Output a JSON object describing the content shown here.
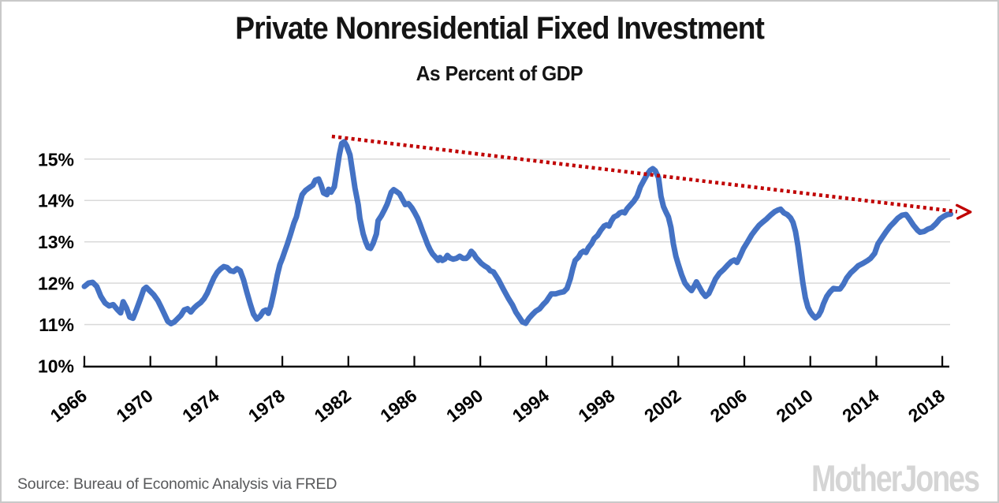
{
  "page": {
    "source": "Source: Bureau of Economic Analysis via FRED",
    "logo": "MotherJones"
  },
  "chart_data": {
    "type": "line",
    "title": "Private Nonresidential Fixed Investment",
    "subtitle": "As Percent of GDP",
    "xlabel": "",
    "ylabel": "Percent of GDP",
    "xlim": [
      1966,
      2018.6
    ],
    "ylim": [
      10,
      15.6
    ],
    "grid": true,
    "x_ticks": [
      1966,
      1970,
      1974,
      1978,
      1982,
      1986,
      1990,
      1994,
      1998,
      2002,
      2006,
      2010,
      2014,
      2018
    ],
    "y_ticks": [
      {
        "value": 10,
        "label": "10%"
      },
      {
        "value": 11,
        "label": "11%"
      },
      {
        "value": 12,
        "label": "12%"
      },
      {
        "value": 13,
        "label": "13%"
      },
      {
        "value": 14,
        "label": "14%"
      },
      {
        "value": 15,
        "label": "15%"
      }
    ],
    "y_gridlines": [
      11,
      12,
      13,
      14,
      15
    ],
    "colors": {
      "line": "#4472C4",
      "trend": "#C00000",
      "grid": "#D9D9D9",
      "axis": "#000000",
      "source_text": "#58595B",
      "logo": "#D5D5D5"
    },
    "series": [
      {
        "name": "Private nonresidential fixed investment, percent of GDP",
        "color": "#4472C4",
        "points": [
          [
            1966.0,
            11.92
          ],
          [
            1966.25,
            12.0
          ],
          [
            1966.5,
            12.02
          ],
          [
            1966.75,
            11.92
          ],
          [
            1967.0,
            11.68
          ],
          [
            1967.25,
            11.52
          ],
          [
            1967.5,
            11.45
          ],
          [
            1967.75,
            11.48
          ],
          [
            1968.0,
            11.36
          ],
          [
            1968.2,
            11.28
          ],
          [
            1968.35,
            11.55
          ],
          [
            1968.55,
            11.4
          ],
          [
            1968.75,
            11.18
          ],
          [
            1968.95,
            11.15
          ],
          [
            1969.15,
            11.35
          ],
          [
            1969.4,
            11.62
          ],
          [
            1969.6,
            11.85
          ],
          [
            1969.75,
            11.9
          ],
          [
            1969.95,
            11.82
          ],
          [
            1970.2,
            11.72
          ],
          [
            1970.45,
            11.58
          ],
          [
            1970.65,
            11.42
          ],
          [
            1970.85,
            11.25
          ],
          [
            1971.05,
            11.08
          ],
          [
            1971.25,
            11.02
          ],
          [
            1971.45,
            11.06
          ],
          [
            1971.65,
            11.14
          ],
          [
            1971.85,
            11.22
          ],
          [
            1972.05,
            11.35
          ],
          [
            1972.25,
            11.38
          ],
          [
            1972.45,
            11.3
          ],
          [
            1972.65,
            11.4
          ],
          [
            1972.85,
            11.47
          ],
          [
            1973.05,
            11.53
          ],
          [
            1973.25,
            11.62
          ],
          [
            1973.45,
            11.76
          ],
          [
            1973.65,
            11.95
          ],
          [
            1973.85,
            12.13
          ],
          [
            1974.05,
            12.26
          ],
          [
            1974.25,
            12.34
          ],
          [
            1974.45,
            12.4
          ],
          [
            1974.65,
            12.38
          ],
          [
            1974.85,
            12.3
          ],
          [
            1975.05,
            12.28
          ],
          [
            1975.25,
            12.35
          ],
          [
            1975.45,
            12.3
          ],
          [
            1975.65,
            12.08
          ],
          [
            1975.85,
            11.78
          ],
          [
            1976.05,
            11.5
          ],
          [
            1976.25,
            11.25
          ],
          [
            1976.45,
            11.13
          ],
          [
            1976.65,
            11.2
          ],
          [
            1976.85,
            11.32
          ],
          [
            1977.0,
            11.35
          ],
          [
            1977.15,
            11.27
          ],
          [
            1977.3,
            11.45
          ],
          [
            1977.5,
            11.8
          ],
          [
            1977.7,
            12.2
          ],
          [
            1977.85,
            12.45
          ],
          [
            1978.0,
            12.6
          ],
          [
            1978.15,
            12.77
          ],
          [
            1978.3,
            12.94
          ],
          [
            1978.5,
            13.19
          ],
          [
            1978.7,
            13.45
          ],
          [
            1978.85,
            13.6
          ],
          [
            1979.0,
            13.85
          ],
          [
            1979.2,
            14.14
          ],
          [
            1979.4,
            14.24
          ],
          [
            1979.6,
            14.3
          ],
          [
            1979.85,
            14.37
          ],
          [
            1980.0,
            14.49
          ],
          [
            1980.2,
            14.52
          ],
          [
            1980.35,
            14.37
          ],
          [
            1980.5,
            14.18
          ],
          [
            1980.7,
            14.14
          ],
          [
            1980.8,
            14.27
          ],
          [
            1980.95,
            14.2
          ],
          [
            1981.15,
            14.33
          ],
          [
            1981.3,
            14.71
          ],
          [
            1981.45,
            15.1
          ],
          [
            1981.6,
            15.38
          ],
          [
            1981.75,
            15.42
          ],
          [
            1981.9,
            15.32
          ],
          [
            1982.1,
            15.1
          ],
          [
            1982.25,
            14.71
          ],
          [
            1982.4,
            14.3
          ],
          [
            1982.6,
            13.89
          ],
          [
            1982.7,
            13.57
          ],
          [
            1982.9,
            13.19
          ],
          [
            1983.05,
            13.0
          ],
          [
            1983.2,
            12.86
          ],
          [
            1983.35,
            12.84
          ],
          [
            1983.5,
            12.96
          ],
          [
            1983.7,
            13.19
          ],
          [
            1983.8,
            13.51
          ],
          [
            1984.0,
            13.63
          ],
          [
            1984.2,
            13.78
          ],
          [
            1984.35,
            13.91
          ],
          [
            1984.5,
            14.08
          ],
          [
            1984.6,
            14.2
          ],
          [
            1984.75,
            14.26
          ],
          [
            1984.9,
            14.22
          ],
          [
            1985.1,
            14.16
          ],
          [
            1985.25,
            14.05
          ],
          [
            1985.45,
            13.9
          ],
          [
            1985.65,
            13.92
          ],
          [
            1985.85,
            13.82
          ],
          [
            1986.0,
            13.72
          ],
          [
            1986.2,
            13.57
          ],
          [
            1986.35,
            13.42
          ],
          [
            1986.5,
            13.25
          ],
          [
            1986.65,
            13.1
          ],
          [
            1986.8,
            12.94
          ],
          [
            1986.95,
            12.81
          ],
          [
            1987.1,
            12.71
          ],
          [
            1987.3,
            12.62
          ],
          [
            1987.45,
            12.55
          ],
          [
            1987.55,
            12.62
          ],
          [
            1987.7,
            12.55
          ],
          [
            1987.85,
            12.58
          ],
          [
            1988.0,
            12.67
          ],
          [
            1988.15,
            12.61
          ],
          [
            1988.35,
            12.58
          ],
          [
            1988.55,
            12.6
          ],
          [
            1988.75,
            12.65
          ],
          [
            1988.95,
            12.6
          ],
          [
            1989.15,
            12.6
          ],
          [
            1989.3,
            12.66
          ],
          [
            1989.45,
            12.77
          ],
          [
            1989.6,
            12.71
          ],
          [
            1989.75,
            12.61
          ],
          [
            1989.9,
            12.55
          ],
          [
            1990.05,
            12.48
          ],
          [
            1990.25,
            12.42
          ],
          [
            1990.45,
            12.37
          ],
          [
            1990.6,
            12.3
          ],
          [
            1990.8,
            12.27
          ],
          [
            1991.1,
            12.08
          ],
          [
            1991.4,
            11.85
          ],
          [
            1991.7,
            11.63
          ],
          [
            1991.95,
            11.47
          ],
          [
            1992.15,
            11.3
          ],
          [
            1992.35,
            11.18
          ],
          [
            1992.55,
            11.06
          ],
          [
            1992.75,
            11.03
          ],
          [
            1992.95,
            11.15
          ],
          [
            1993.15,
            11.24
          ],
          [
            1993.35,
            11.32
          ],
          [
            1993.6,
            11.38
          ],
          [
            1993.8,
            11.48
          ],
          [
            1994.0,
            11.56
          ],
          [
            1994.15,
            11.65
          ],
          [
            1994.3,
            11.74
          ],
          [
            1994.55,
            11.74
          ],
          [
            1994.8,
            11.77
          ],
          [
            1995.05,
            11.79
          ],
          [
            1995.25,
            11.87
          ],
          [
            1995.45,
            12.1
          ],
          [
            1995.6,
            12.35
          ],
          [
            1995.75,
            12.55
          ],
          [
            1995.95,
            12.63
          ],
          [
            1996.1,
            12.73
          ],
          [
            1996.25,
            12.77
          ],
          [
            1996.4,
            12.74
          ],
          [
            1996.55,
            12.86
          ],
          [
            1996.75,
            12.96
          ],
          [
            1996.9,
            13.08
          ],
          [
            1997.1,
            13.15
          ],
          [
            1997.3,
            13.28
          ],
          [
            1997.5,
            13.38
          ],
          [
            1997.65,
            13.41
          ],
          [
            1997.8,
            13.38
          ],
          [
            1997.95,
            13.51
          ],
          [
            1998.1,
            13.6
          ],
          [
            1998.3,
            13.64
          ],
          [
            1998.45,
            13.7
          ],
          [
            1998.6,
            13.72
          ],
          [
            1998.75,
            13.7
          ],
          [
            1998.9,
            13.8
          ],
          [
            1999.1,
            13.89
          ],
          [
            1999.3,
            13.98
          ],
          [
            1999.5,
            14.1
          ],
          [
            1999.7,
            14.33
          ],
          [
            1999.9,
            14.48
          ],
          [
            2000.1,
            14.62
          ],
          [
            2000.3,
            14.73
          ],
          [
            2000.45,
            14.77
          ],
          [
            2000.6,
            14.72
          ],
          [
            2000.8,
            14.55
          ],
          [
            2000.95,
            14.1
          ],
          [
            2001.1,
            13.85
          ],
          [
            2001.25,
            13.72
          ],
          [
            2001.4,
            13.6
          ],
          [
            2001.55,
            13.35
          ],
          [
            2001.7,
            12.95
          ],
          [
            2001.85,
            12.65
          ],
          [
            2002.0,
            12.45
          ],
          [
            2002.2,
            12.2
          ],
          [
            2002.4,
            12.0
          ],
          [
            2002.6,
            11.9
          ],
          [
            2002.8,
            11.82
          ],
          [
            2003.0,
            11.95
          ],
          [
            2003.1,
            12.03
          ],
          [
            2003.25,
            11.92
          ],
          [
            2003.45,
            11.78
          ],
          [
            2003.65,
            11.68
          ],
          [
            2003.85,
            11.75
          ],
          [
            2004.05,
            11.92
          ],
          [
            2004.25,
            12.1
          ],
          [
            2004.5,
            12.24
          ],
          [
            2004.75,
            12.33
          ],
          [
            2005.0,
            12.44
          ],
          [
            2005.2,
            12.52
          ],
          [
            2005.4,
            12.56
          ],
          [
            2005.55,
            12.5
          ],
          [
            2005.75,
            12.66
          ],
          [
            2005.95,
            12.84
          ],
          [
            2006.2,
            13.0
          ],
          [
            2006.45,
            13.17
          ],
          [
            2006.7,
            13.3
          ],
          [
            2006.9,
            13.4
          ],
          [
            2007.1,
            13.47
          ],
          [
            2007.35,
            13.55
          ],
          [
            2007.6,
            13.65
          ],
          [
            2007.85,
            13.73
          ],
          [
            2008.05,
            13.77
          ],
          [
            2008.2,
            13.79
          ],
          [
            2008.4,
            13.7
          ],
          [
            2008.6,
            13.66
          ],
          [
            2008.8,
            13.58
          ],
          [
            2008.95,
            13.47
          ],
          [
            2009.1,
            13.25
          ],
          [
            2009.25,
            12.9
          ],
          [
            2009.4,
            12.45
          ],
          [
            2009.55,
            12.0
          ],
          [
            2009.7,
            11.65
          ],
          [
            2009.85,
            11.42
          ],
          [
            2010.0,
            11.3
          ],
          [
            2010.15,
            11.22
          ],
          [
            2010.3,
            11.16
          ],
          [
            2010.5,
            11.22
          ],
          [
            2010.65,
            11.33
          ],
          [
            2010.8,
            11.5
          ],
          [
            2011.0,
            11.68
          ],
          [
            2011.2,
            11.79
          ],
          [
            2011.4,
            11.87
          ],
          [
            2011.6,
            11.86
          ],
          [
            2011.8,
            11.86
          ],
          [
            2012.0,
            11.97
          ],
          [
            2012.2,
            12.12
          ],
          [
            2012.45,
            12.25
          ],
          [
            2012.7,
            12.34
          ],
          [
            2012.9,
            12.42
          ],
          [
            2013.2,
            12.48
          ],
          [
            2013.45,
            12.54
          ],
          [
            2013.65,
            12.6
          ],
          [
            2013.9,
            12.72
          ],
          [
            2014.1,
            12.95
          ],
          [
            2014.35,
            13.1
          ],
          [
            2014.6,
            13.25
          ],
          [
            2014.85,
            13.38
          ],
          [
            2015.1,
            13.48
          ],
          [
            2015.3,
            13.57
          ],
          [
            2015.55,
            13.64
          ],
          [
            2015.8,
            13.66
          ],
          [
            2016.0,
            13.55
          ],
          [
            2016.25,
            13.4
          ],
          [
            2016.5,
            13.28
          ],
          [
            2016.65,
            13.23
          ],
          [
            2016.9,
            13.25
          ],
          [
            2017.1,
            13.3
          ],
          [
            2017.35,
            13.34
          ],
          [
            2017.6,
            13.43
          ],
          [
            2017.85,
            13.55
          ],
          [
            2018.1,
            13.62
          ],
          [
            2018.3,
            13.66
          ],
          [
            2018.5,
            13.67
          ]
        ]
      }
    ],
    "trend_line": {
      "name": "Declining-peaks trend arrow",
      "color": "#C00000",
      "style": "dotted",
      "points": [
        [
          1981.0,
          15.55
        ],
        [
          2018.9,
          13.73
        ]
      ],
      "arrow_tip": [
        2019.7,
        13.72
      ]
    },
    "annotations": {
      "source": "Source: Bureau of Economic Analysis via FRED",
      "branding": "MotherJones"
    }
  }
}
